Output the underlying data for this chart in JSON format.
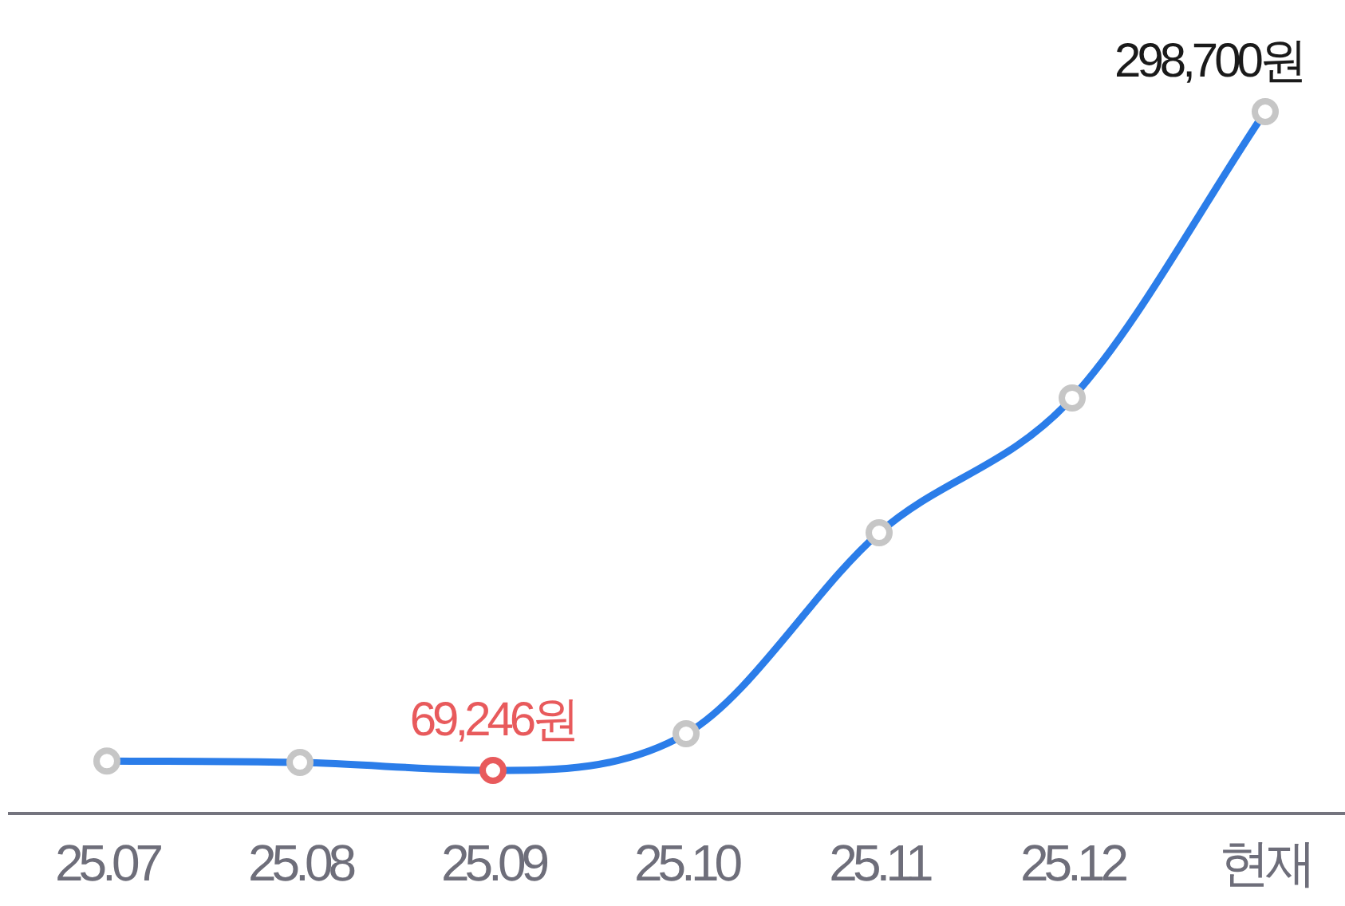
{
  "chart_data": {
    "type": "line",
    "categories": [
      "25.07",
      "25.08",
      "25.09",
      "25.10",
      "25.11",
      "25.12",
      "현재"
    ],
    "series": [
      {
        "color": "#2b7de9",
        "colors": [
          "#c6c6c6",
          "#c6c6c6",
          "#e85a5c",
          "#c6c6c6",
          "#c6c6c6",
          "#c6c6c6",
          "#c6c6c6"
        ],
        "values": [
          72500,
          72000,
          69246,
          82000,
          152000,
          199000,
          298700
        ],
        "value_labels": [
          null,
          null,
          "69,246원",
          null,
          null,
          null,
          "298,700원"
        ]
      }
    ],
    "tick_labels": "x",
    "marker": "circle"
  }
}
